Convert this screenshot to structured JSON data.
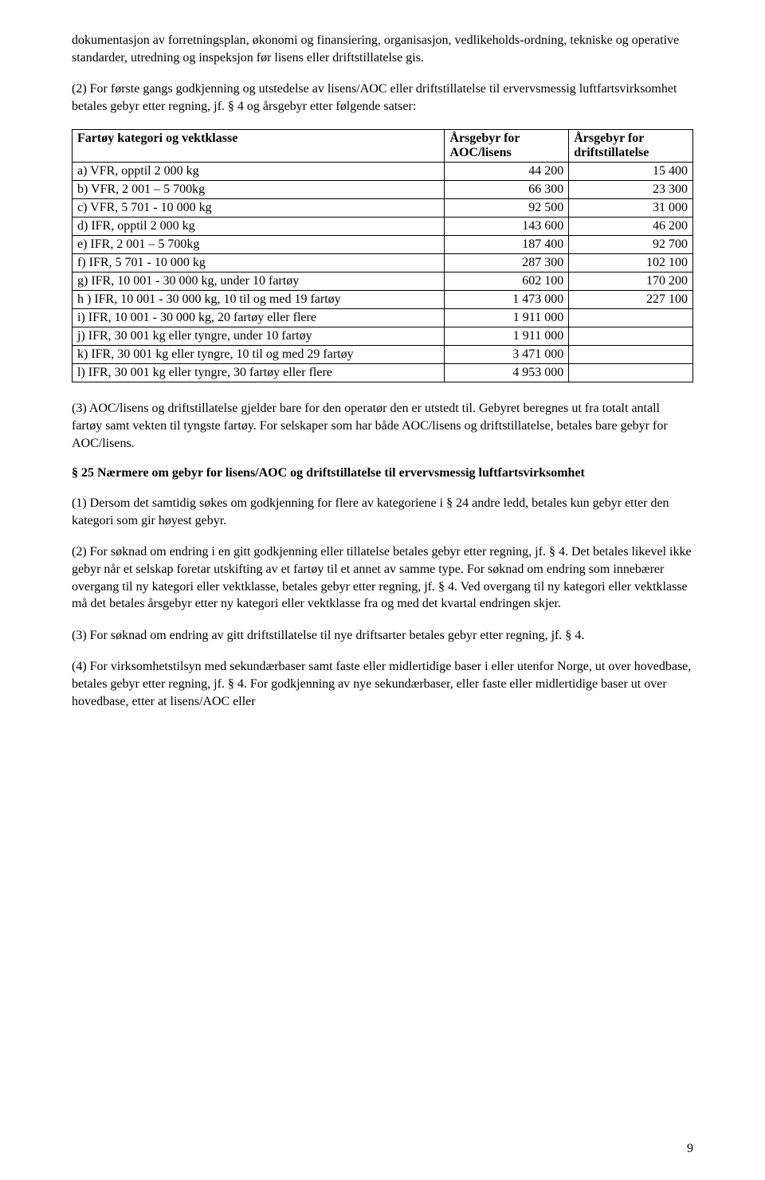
{
  "para_intro": "dokumentasjon av forretningsplan, økonomi og finansiering, organisasjon, vedlikeholds-ordning, tekniske og operative standarder, utredning og inspeksjon før lisens eller driftstillatelse gis.",
  "para_p2": "(2) For første gangs godkjenning og utstedelse av lisens/AOC eller driftstillatelse til ervervsmessig luftfartsvirksomhet betales gebyr etter regning, jf. § 4 og årsgebyr etter følgende satser:",
  "table": {
    "head_cat": "Fartøy kategori og vektklasse",
    "head_col1_l1": "Årsgebyr for",
    "head_col1_l2": "AOC/lisens",
    "head_col2_l1": "Årsgebyr for",
    "head_col2_l2": "driftstillatelse",
    "rows": [
      {
        "label": "a)  VFR, opptil 2 000 kg",
        "v1": "44 200",
        "v2": "15 400"
      },
      {
        "label": "b)  VFR, 2 001 – 5 700kg",
        "v1": "66 300",
        "v2": "23 300"
      },
      {
        "label": "c)  VFR, 5 701 - 10 000 kg",
        "v1": "92 500",
        "v2": "31 000"
      },
      {
        "label": "d)  IFR, opptil 2 000 kg",
        "v1": "143 600",
        "v2": "46 200"
      },
      {
        "label": "e)  IFR, 2 001 – 5 700kg",
        "v1": "187 400",
        "v2": "92 700"
      },
      {
        "label": "f)  IFR, 5 701 - 10 000 kg",
        "v1": "287 300",
        "v2": "102 100"
      },
      {
        "label": "g)  IFR, 10 001 - 30 000 kg, under 10 fartøy",
        "v1": "602 100",
        "v2": "170 200"
      },
      {
        "label": "h ) IFR, 10 001 - 30 000 kg, 10 til og med 19 fartøy",
        "v1": "1 473 000",
        "v2": "227 100"
      },
      {
        "label": "i)  IFR, 10 001 - 30 000 kg, 20 fartøy eller flere",
        "v1": "1 911 000",
        "v2": ""
      },
      {
        "label": "j)  IFR, 30 001 kg eller tyngre, under 10 fartøy",
        "v1": "1 911 000",
        "v2": ""
      },
      {
        "label": "k)  IFR, 30 001 kg eller tyngre, 10 til og med 29 fartøy",
        "v1": "3 471 000",
        "v2": ""
      },
      {
        "label": "l)  IFR, 30 001 kg eller tyngre, 30 fartøy eller flere",
        "v1": "4 953 000",
        "v2": ""
      }
    ]
  },
  "para_p3": "(3) AOC/lisens og driftstillatelse gjelder bare for den operatør den er utstedt til. Gebyret beregnes ut fra totalt antall fartøy samt vekten til tyngste fartøy. For selskaper som har både AOC/lisens og driftstillatelse, betales bare gebyr for AOC/lisens.",
  "section25_title": "§ 25 Nærmere om gebyr for lisens/AOC og driftstillatelse til ervervsmessig luftfartsvirksomhet",
  "para_25_1": "(1) Dersom det samtidig søkes om godkjenning for flere av kategoriene i § 24 andre ledd, betales kun gebyr etter den kategori som gir høyest gebyr.",
  "para_25_2": "(2) For søknad om endring i en gitt godkjenning eller tillatelse betales gebyr etter regning, jf. § 4. Det betales likevel ikke gebyr når et selskap foretar utskifting av et fartøy til et annet av samme type. For søknad om endring som innebærer overgang til ny kategori eller vektklasse, betales gebyr etter regning, jf. § 4. Ved overgang til ny kategori eller vektklasse må det betales årsgebyr etter ny kategori eller vektklasse fra og med det kvartal endringen skjer.",
  "para_25_3": "(3) For søknad om endring av gitt driftstillatelse til nye driftsarter betales gebyr etter regning, jf. § 4.",
  "para_25_4": "(4) For virksomhetstilsyn med sekundærbaser samt faste eller midlertidige baser i eller utenfor Norge, ut over hovedbase, betales gebyr etter regning, jf. § 4. For godkjenning av nye sekundærbaser, eller faste eller midlertidige baser ut over hovedbase, etter at lisens/AOC eller",
  "page_number": "9"
}
